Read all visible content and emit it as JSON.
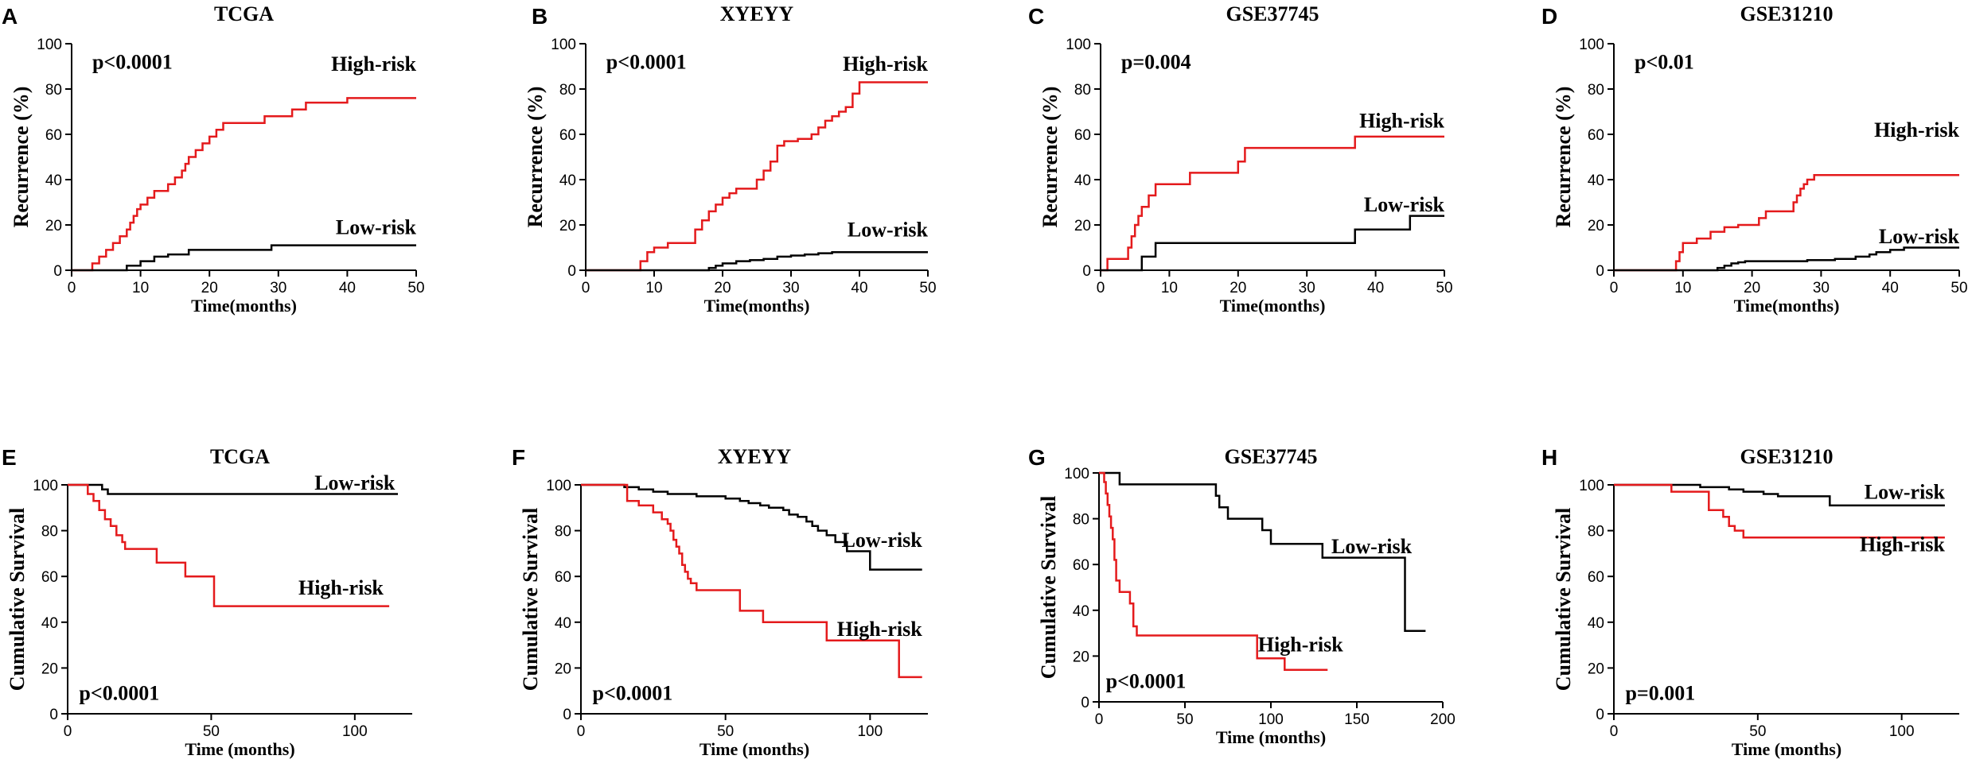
{
  "colors": {
    "high_risk": "#e41a1c",
    "low_risk": "#000000",
    "axis": "#000000"
  },
  "chart_data": [
    {
      "type": "line",
      "panel": "A",
      "title": "TCGA",
      "xlabel": "Time(months)",
      "ylabel": "Recurrence (%)",
      "xlim": [
        0,
        50
      ],
      "ylim": [
        0,
        100
      ],
      "xticks": [
        0,
        10,
        20,
        30,
        40,
        50
      ],
      "yticks": [
        0,
        20,
        40,
        60,
        80,
        100
      ],
      "p_value": "p<0.0001",
      "series": [
        {
          "name": "High-risk",
          "color": "high_risk",
          "x": [
            0,
            3,
            4,
            5,
            6,
            7,
            8,
            8.5,
            9,
            9.5,
            10,
            11,
            12,
            14,
            15,
            16,
            16.5,
            17,
            18,
            19,
            20,
            21,
            22,
            24,
            26,
            28,
            30,
            32,
            34,
            37,
            40,
            45,
            50
          ],
          "y": [
            0,
            3,
            6,
            9,
            12,
            15,
            18,
            21,
            24,
            27,
            29,
            32,
            35,
            38,
            41,
            44,
            47,
            50,
            53,
            56,
            59,
            62,
            65,
            65,
            65,
            68,
            68,
            71,
            74,
            74,
            76,
            76,
            76
          ]
        },
        {
          "name": "Low-risk",
          "color": "low_risk",
          "x": [
            0,
            8,
            10,
            12,
            14,
            17,
            22,
            29,
            35,
            40,
            50
          ],
          "y": [
            0,
            2,
            4,
            6,
            7,
            9,
            9,
            11,
            11,
            11,
            11
          ]
        }
      ]
    },
    {
      "type": "line",
      "panel": "B",
      "title": "XYEYY",
      "xlabel": "Time(months)",
      "ylabel": "Recurrence (%)",
      "xlim": [
        0,
        50
      ],
      "ylim": [
        0,
        100
      ],
      "xticks": [
        0,
        10,
        20,
        30,
        40,
        50
      ],
      "yticks": [
        0,
        20,
        40,
        60,
        80,
        100
      ],
      "p_value": "p<0.0001",
      "series": [
        {
          "name": "High-risk",
          "color": "high_risk",
          "x": [
            0,
            8,
            9,
            10,
            12,
            16,
            17,
            18,
            19,
            20,
            21,
            22,
            25,
            26,
            27,
            28,
            29,
            30,
            31,
            33,
            34,
            35,
            36,
            37,
            38,
            39,
            40,
            45,
            50
          ],
          "y": [
            0,
            4,
            8,
            10,
            12,
            18,
            22,
            26,
            29,
            32,
            34,
            36,
            40,
            44,
            48,
            55,
            57,
            57,
            58,
            60,
            63,
            66,
            68,
            70,
            72,
            78,
            83,
            83,
            83
          ]
        },
        {
          "name": "Low-risk",
          "color": "low_risk",
          "x": [
            0,
            18,
            19,
            20,
            22,
            24,
            26,
            28,
            30,
            32,
            34,
            36,
            40,
            45,
            50
          ],
          "y": [
            0,
            1,
            2,
            3,
            4,
            4.5,
            5,
            6,
            6.5,
            7,
            7.5,
            8,
            8,
            8,
            8
          ]
        }
      ]
    },
    {
      "type": "line",
      "panel": "C",
      "title": "GSE37745",
      "xlabel": "Time(months)",
      "ylabel": "Recurrence (%)",
      "xlim": [
        0,
        50
      ],
      "ylim": [
        0,
        100
      ],
      "xticks": [
        0,
        10,
        20,
        30,
        40,
        50
      ],
      "yticks": [
        0,
        20,
        40,
        60,
        80,
        100
      ],
      "p_value": "p=0.004",
      "series": [
        {
          "name": "High-risk",
          "color": "high_risk",
          "x": [
            0,
            1,
            4,
            4.5,
            5,
            5.5,
            6,
            7,
            8,
            10,
            13,
            14,
            18,
            20,
            21,
            30,
            37,
            40,
            50
          ],
          "y": [
            0,
            5,
            10,
            15,
            20,
            24,
            28,
            33,
            38,
            38,
            43,
            43,
            43,
            48,
            54,
            54,
            59,
            59,
            59
          ]
        },
        {
          "name": "Low-risk",
          "color": "low_risk",
          "x": [
            0,
            6,
            8,
            20,
            37,
            43,
            45,
            50
          ],
          "y": [
            0,
            6,
            12,
            12,
            18,
            18,
            24,
            24
          ]
        }
      ]
    },
    {
      "type": "line",
      "panel": "D",
      "title": "GSE31210",
      "xlabel": "Time(months)",
      "ylabel": "Recurrence (%)",
      "xlim": [
        0,
        50
      ],
      "ylim": [
        0,
        100
      ],
      "xticks": [
        0,
        10,
        20,
        30,
        40,
        50
      ],
      "yticks": [
        0,
        20,
        40,
        60,
        80,
        100
      ],
      "p_value": "p<0.01",
      "series": [
        {
          "name": "High-risk",
          "color": "high_risk",
          "x": [
            0,
            9,
            9.5,
            10,
            12,
            14,
            16,
            18,
            21,
            22,
            24,
            26,
            26.5,
            27,
            27.5,
            28,
            29,
            35,
            50
          ],
          "y": [
            0,
            4,
            8,
            12,
            14,
            17,
            19,
            20,
            23,
            26,
            26,
            30,
            33,
            36,
            38,
            40,
            42,
            42,
            42
          ]
        },
        {
          "name": "Low-risk",
          "color": "low_risk",
          "x": [
            0,
            15,
            16,
            17,
            18,
            19,
            20,
            22,
            25,
            28,
            32,
            35,
            37,
            38,
            40,
            42,
            45,
            50
          ],
          "y": [
            0,
            1,
            2,
            3,
            3.5,
            4,
            4,
            4,
            4,
            4.5,
            5,
            6,
            7,
            8,
            9,
            10,
            10,
            10
          ]
        }
      ]
    },
    {
      "type": "line",
      "panel": "E",
      "title": "TCGA",
      "xlabel": "Time (months)",
      "ylabel": "Cumulative Survival",
      "xlim": [
        0,
        120
      ],
      "ylim": [
        0,
        100
      ],
      "xticks": [
        0,
        50,
        100
      ],
      "yticks": [
        0,
        20,
        40,
        60,
        80,
        100
      ],
      "p_value": "p<0.0001",
      "series": [
        {
          "name": "Low-risk",
          "color": "low_risk",
          "x": [
            0,
            12,
            14,
            115
          ],
          "y": [
            100,
            98,
            96,
            96
          ]
        },
        {
          "name": "High-risk",
          "color": "high_risk",
          "x": [
            0,
            7,
            9,
            11,
            13,
            15,
            17,
            19,
            20,
            31,
            33,
            41,
            50,
            51,
            112
          ],
          "y": [
            100,
            96,
            93,
            89,
            85,
            82,
            78,
            75,
            72,
            66,
            66,
            60,
            60,
            47,
            47
          ]
        }
      ]
    },
    {
      "type": "line",
      "panel": "F",
      "title": "XYEYY",
      "xlabel": "Time (months)",
      "ylabel": "Cumulative Survival",
      "xlim": [
        0,
        120
      ],
      "ylim": [
        0,
        100
      ],
      "xticks": [
        0,
        50,
        100
      ],
      "yticks": [
        0,
        20,
        40,
        60,
        80,
        100
      ],
      "p_value": "p<0.0001",
      "series": [
        {
          "name": "Low-risk",
          "color": "low_risk",
          "x": [
            0,
            15,
            20,
            25,
            30,
            35,
            40,
            45,
            50,
            55,
            58,
            62,
            65,
            70,
            72,
            75,
            78,
            80,
            82,
            85,
            88,
            92,
            97,
            100,
            110,
            118
          ],
          "y": [
            100,
            99,
            98,
            97,
            96,
            96,
            95,
            95,
            94,
            93,
            92,
            91,
            90,
            89,
            87,
            86,
            84,
            82,
            80,
            78,
            75,
            71,
            71,
            63,
            63,
            63
          ]
        },
        {
          "name": "High-risk",
          "color": "high_risk",
          "x": [
            0,
            16,
            20,
            25,
            28,
            30,
            31,
            32,
            33,
            34,
            35,
            36,
            37,
            38,
            40,
            50,
            55,
            60,
            63,
            75,
            80,
            85,
            95,
            100,
            108,
            110,
            118
          ],
          "y": [
            100,
            93,
            91,
            88,
            85,
            83,
            80,
            76,
            73,
            70,
            65,
            62,
            59,
            57,
            54,
            54,
            45,
            45,
            40,
            40,
            40,
            32,
            32,
            32,
            32,
            16,
            16
          ]
        }
      ]
    },
    {
      "type": "line",
      "panel": "G",
      "title": "GSE37745",
      "xlabel": "Time (months)",
      "ylabel": "Cumulative Survival",
      "xlim": [
        0,
        200
      ],
      "ylim": [
        0,
        100
      ],
      "xticks": [
        0,
        50,
        100,
        150,
        200
      ],
      "yticks": [
        0,
        20,
        40,
        60,
        80,
        100
      ],
      "p_value": "p<0.0001",
      "series": [
        {
          "name": "Low-risk",
          "color": "low_risk",
          "x": [
            0,
            10,
            12,
            60,
            68,
            70,
            75,
            88,
            95,
            100,
            105,
            130,
            178,
            185,
            190
          ],
          "y": [
            100,
            100,
            95,
            95,
            90,
            85,
            80,
            80,
            75,
            69,
            69,
            63,
            31,
            31,
            31
          ]
        },
        {
          "name": "High-risk",
          "color": "high_risk",
          "x": [
            0,
            3,
            4,
            5,
            6,
            7,
            8,
            9,
            10,
            12,
            15,
            18,
            20,
            22,
            40,
            60,
            80,
            90,
            92,
            105,
            108,
            125,
            133
          ],
          "y": [
            100,
            96,
            91,
            86,
            81,
            76,
            71,
            62,
            53,
            48,
            48,
            43,
            33,
            29,
            29,
            29,
            29,
            29,
            19,
            19,
            14,
            14,
            14
          ]
        }
      ]
    },
    {
      "type": "line",
      "panel": "H",
      "title": "GSE31210",
      "xlabel": "Time (months)",
      "ylabel": "Cumulative Survival",
      "xlim": [
        0,
        120
      ],
      "ylim": [
        0,
        100
      ],
      "xticks": [
        0,
        50,
        100
      ],
      "yticks": [
        0,
        20,
        40,
        60,
        80,
        100
      ],
      "p_value": "p=0.001",
      "series": [
        {
          "name": "Low-risk",
          "color": "low_risk",
          "x": [
            0,
            20,
            30,
            40,
            45,
            52,
            57,
            65,
            75,
            80,
            100,
            115
          ],
          "y": [
            100,
            100,
            99,
            98,
            97,
            96,
            95,
            95,
            91,
            91,
            91,
            91
          ]
        },
        {
          "name": "High-risk",
          "color": "high_risk",
          "x": [
            0,
            20,
            25,
            33,
            38,
            40,
            42,
            45,
            50,
            60,
            100,
            115
          ],
          "y": [
            100,
            97,
            97,
            89,
            86,
            82,
            80,
            77,
            77,
            77,
            77,
            77
          ]
        }
      ]
    }
  ]
}
